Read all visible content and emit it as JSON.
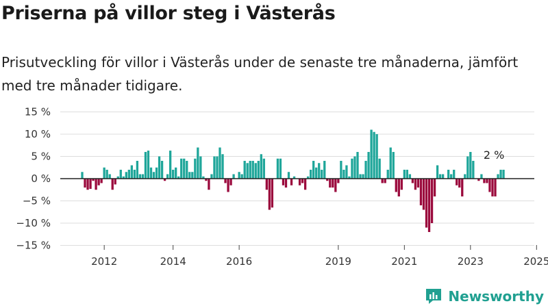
{
  "header": {
    "title": "Priserna på villor steg i Västerås",
    "subtitle": "Prisutveckling för villor i Västerås under de senaste tre månaderna, jämfört med tre månader tidigare."
  },
  "chart_data": {
    "type": "bar",
    "title": "Priserna på villor steg i Västerås",
    "subtitle": "Prisutveckling för villor i Västerås under de senaste tre månaderna, jämfört med tre månader tidigare.",
    "xlabel": "",
    "ylabel": "",
    "ylim": [
      -15,
      15
    ],
    "y_ticks": [
      15,
      10,
      5,
      0,
      -5,
      -10,
      -15
    ],
    "y_tick_labels": [
      "15 %",
      "10 %",
      "5 %",
      "0 %",
      "−5 %",
      "−10 %",
      "−15 %"
    ],
    "x_ticks": [
      {
        "label": "2012",
        "index": 8
      },
      {
        "label": "2014",
        "index": 33
      },
      {
        "label": "2016",
        "index": 57
      },
      {
        "label": "2019",
        "index": 93
      },
      {
        "label": "2021",
        "index": 117
      },
      {
        "label": "2023",
        "index": 141
      },
      {
        "label": "2025",
        "index": 165
      }
    ],
    "grid": true,
    "positive_color": "#1fa69a",
    "negative_color": "#9b0a3d",
    "end_label": "2 %",
    "values": [
      1.5,
      -2,
      -2.5,
      -2.3,
      -0.5,
      -2.5,
      -1.5,
      -1,
      2.5,
      2,
      1,
      -2.5,
      -1.3,
      0.5,
      2,
      0.5,
      1.5,
      2,
      3,
      2,
      4,
      1,
      1,
      6,
      6.3,
      2.5,
      1.5,
      2.5,
      5,
      4,
      -0.5,
      1,
      6.3,
      2,
      2.5,
      0.5,
      4.5,
      4.5,
      4,
      1.5,
      1.5,
      4.5,
      7,
      5,
      0.5,
      -0.5,
      -2.5,
      1,
      5,
      5,
      7,
      5.5,
      -1,
      -3,
      -1.5,
      1,
      0,
      1.5,
      1,
      4,
      3.5,
      4,
      4,
      3.5,
      4,
      5.5,
      4.5,
      -2.5,
      -7,
      -6.5,
      0,
      4.5,
      4.5,
      -1.5,
      -2,
      1.5,
      -1.5,
      0.5,
      0,
      -1.5,
      -1,
      -2.5,
      0.5,
      2,
      4,
      2.5,
      3.5,
      2,
      4,
      -0.5,
      -2,
      -2,
      -3,
      -1,
      4,
      2,
      3,
      0.5,
      4.5,
      5,
      6,
      1,
      1,
      4,
      6,
      11,
      10.5,
      10,
      4.5,
      -1,
      -1,
      2,
      7,
      6,
      -3,
      -4,
      -2.5,
      2,
      2,
      1,
      -1,
      -2.5,
      -2,
      -6,
      -7,
      -11,
      -12,
      -10,
      -4,
      3,
      1,
      1,
      0,
      2,
      1,
      2,
      -1.5,
      -2,
      -4,
      1,
      5,
      6,
      4,
      0,
      -0.5,
      1,
      -1,
      -1,
      -3,
      -4,
      -4,
      1,
      2,
      2
    ]
  },
  "branding": {
    "name": "Newsworthy",
    "logo_icon": "newsworthy-logo-icon",
    "color": "#20a091"
  }
}
